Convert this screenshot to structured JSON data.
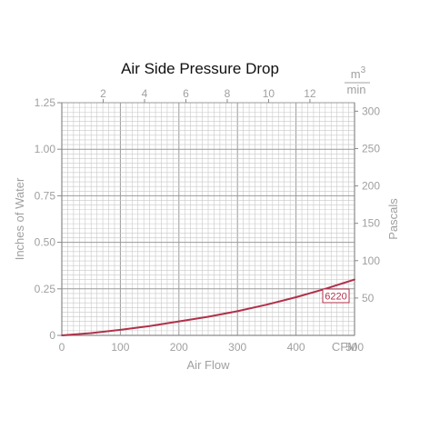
{
  "chart_data": {
    "type": "line",
    "title": "Air Side Pressure Drop",
    "xlabel": "Air Flow",
    "xunit": "CFM",
    "ylabel_left": "Inches of Water",
    "ylabel_right": "Pascals",
    "top_axis_unit_num": "m3",
    "top_axis_unit_den": "min",
    "x_range": [
      0,
      500
    ],
    "y_range": [
      0,
      1.25
    ],
    "x_ticks": [
      "0",
      "100",
      "200",
      "300",
      "400",
      "500"
    ],
    "y_ticks": [
      "0",
      "0.25",
      "0.50",
      "0.75",
      "1.00",
      "1.25"
    ],
    "top_ticks": [
      "2",
      "4",
      "6",
      "8",
      "10",
      "12"
    ],
    "right_ticks": [
      "50",
      "100",
      "150",
      "200",
      "250",
      "300"
    ],
    "grid": true,
    "series": [
      {
        "name": "6220",
        "color": "#b0314a",
        "x": [
          0,
          50,
          100,
          150,
          200,
          250,
          300,
          350,
          400,
          450,
          500
        ],
        "y": [
          0,
          0.012,
          0.03,
          0.05,
          0.075,
          0.1,
          0.13,
          0.165,
          0.205,
          0.25,
          0.3
        ]
      }
    ]
  }
}
